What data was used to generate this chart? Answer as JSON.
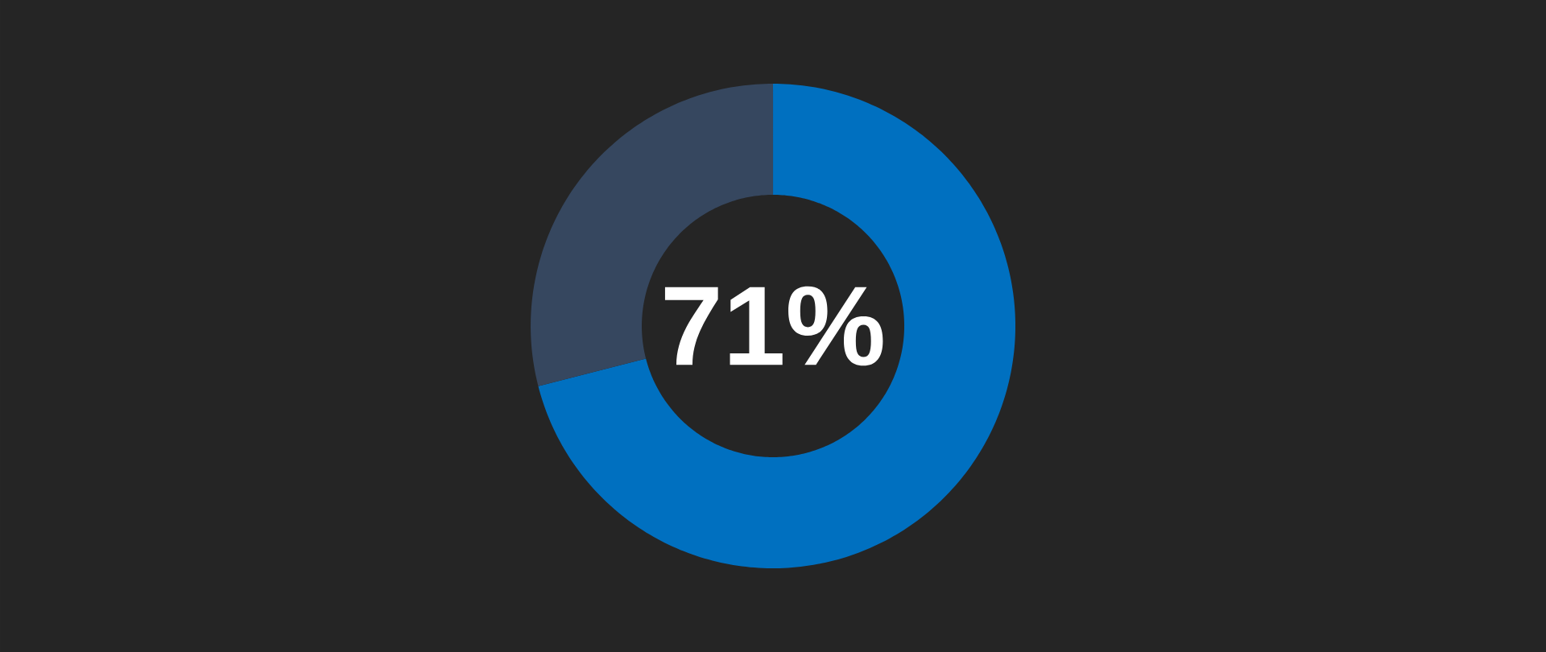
{
  "chart_data": {
    "type": "donut",
    "categories": [
      null,
      null
    ],
    "values": [
      71,
      29
    ],
    "colors": [
      "#0070c0",
      "#36475f"
    ],
    "value_labels": [
      "71%",
      null
    ]
  }
}
